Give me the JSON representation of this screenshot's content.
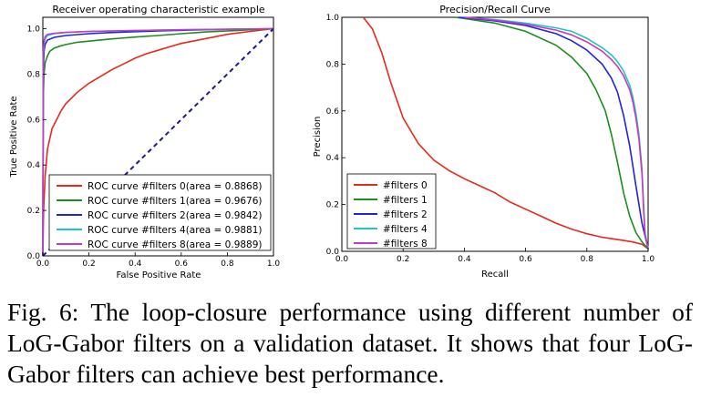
{
  "chart_data": [
    {
      "type": "line",
      "title": "Receiver operating characteristic example",
      "xlabel": "False Positive Rate",
      "ylabel": "True Positive Rate",
      "xlim": [
        0.0,
        1.0
      ],
      "ylim": [
        0.0,
        1.05
      ],
      "xticks": [
        "0.0",
        "0.2",
        "0.4",
        "0.6",
        "0.8",
        "1.0"
      ],
      "yticks": [
        "0.0",
        "0.2",
        "0.4",
        "0.6",
        "0.8",
        "1.0"
      ],
      "legend_position": "lower-right",
      "series": [
        {
          "name": "ROC curve #filters 0(area = 0.8868)",
          "color": "#e8281e",
          "x": [
            0,
            0.003,
            0.01,
            0.02,
            0.04,
            0.06,
            0.08,
            0.1,
            0.15,
            0.2,
            0.25,
            0.3,
            0.35,
            0.4,
            0.45,
            0.5,
            0.55,
            0.6,
            0.65,
            0.7,
            0.75,
            0.8,
            0.9,
            1.0
          ],
          "y": [
            0,
            0.2,
            0.35,
            0.47,
            0.56,
            0.6,
            0.64,
            0.67,
            0.72,
            0.76,
            0.79,
            0.82,
            0.845,
            0.87,
            0.89,
            0.905,
            0.92,
            0.935,
            0.945,
            0.955,
            0.965,
            0.975,
            0.988,
            1.0
          ]
        },
        {
          "name": "ROC curve #filters 1(area = 0.9676)",
          "color": "#1e8c1e",
          "x": [
            0,
            0.002,
            0.005,
            0.01,
            0.02,
            0.03,
            0.05,
            0.08,
            0.1,
            0.15,
            0.2,
            0.3,
            0.4,
            0.5,
            0.6,
            0.7,
            0.8,
            0.9,
            1.0
          ],
          "y": [
            0,
            0.7,
            0.8,
            0.85,
            0.88,
            0.9,
            0.915,
            0.925,
            0.93,
            0.94,
            0.945,
            0.955,
            0.963,
            0.97,
            0.978,
            0.985,
            0.99,
            0.995,
            1.0
          ]
        },
        {
          "name": "ROC curve #filters 2(area = 0.9842)",
          "color": "#2222dd",
          "x": [
            0,
            0.002,
            0.005,
            0.01,
            0.02,
            0.05,
            0.1,
            0.2,
            0.3,
            0.5,
            0.7,
            1.0
          ],
          "y": [
            0,
            0.8,
            0.9,
            0.93,
            0.95,
            0.962,
            0.97,
            0.978,
            0.983,
            0.99,
            0.995,
            1.0
          ]
        },
        {
          "name": "ROC curve #filters 4(area = 0.9881)",
          "color": "#22c4c4",
          "x": [
            0,
            0.002,
            0.005,
            0.01,
            0.02,
            0.05,
            0.1,
            0.2,
            0.4,
            0.6,
            1.0
          ],
          "y": [
            0,
            0.88,
            0.93,
            0.955,
            0.97,
            0.978,
            0.983,
            0.988,
            0.992,
            0.995,
            1.0
          ]
        },
        {
          "name": "ROC curve #filters 8(area = 0.9889)",
          "color": "#c43ac4",
          "x": [
            0,
            0.002,
            0.005,
            0.01,
            0.02,
            0.05,
            0.1,
            0.2,
            0.4,
            0.6,
            1.0
          ],
          "y": [
            0,
            0.9,
            0.945,
            0.965,
            0.975,
            0.98,
            0.984,
            0.988,
            0.992,
            0.995,
            1.0
          ]
        },
        {
          "name": "",
          "color": "#1a1a8c",
          "style": "dashed",
          "x": [
            0,
            1
          ],
          "y": [
            0,
            1
          ]
        }
      ]
    },
    {
      "type": "line",
      "title": "Precision/Recall Curve",
      "xlabel": "Recall",
      "ylabel": "Precision",
      "xlim": [
        0.0,
        1.0
      ],
      "ylim": [
        0.0,
        1.0
      ],
      "xticks": [
        "0.0",
        "0.2",
        "0.4",
        "0.6",
        "0.8",
        "1.0"
      ],
      "yticks": [
        "0.0",
        "0.2",
        "0.4",
        "0.6",
        "0.8",
        "1.0"
      ],
      "legend_position": "lower-left",
      "series": [
        {
          "name": "#filters 0",
          "color": "#e8281e",
          "x": [
            0.07,
            0.1,
            0.13,
            0.16,
            0.2,
            0.25,
            0.3,
            0.35,
            0.4,
            0.45,
            0.5,
            0.55,
            0.6,
            0.65,
            0.7,
            0.75,
            0.8,
            0.85,
            0.9,
            0.95,
            0.98,
            1.0
          ],
          "y": [
            1.0,
            0.95,
            0.85,
            0.72,
            0.57,
            0.46,
            0.39,
            0.345,
            0.31,
            0.28,
            0.25,
            0.21,
            0.18,
            0.15,
            0.12,
            0.095,
            0.075,
            0.06,
            0.05,
            0.04,
            0.03,
            0.01
          ]
        },
        {
          "name": "#filters 1",
          "color": "#1e8c1e",
          "x": [
            0.37,
            0.4,
            0.5,
            0.6,
            0.7,
            0.75,
            0.8,
            0.83,
            0.86,
            0.88,
            0.9,
            0.92,
            0.94,
            0.96,
            0.98,
            1.0
          ],
          "y": [
            1.0,
            0.995,
            0.975,
            0.94,
            0.88,
            0.83,
            0.76,
            0.69,
            0.6,
            0.5,
            0.38,
            0.25,
            0.15,
            0.08,
            0.04,
            0.01
          ]
        },
        {
          "name": "#filters 2",
          "color": "#2222dd",
          "x": [
            0.38,
            0.4,
            0.5,
            0.6,
            0.7,
            0.75,
            0.8,
            0.85,
            0.88,
            0.9,
            0.92,
            0.94,
            0.96,
            0.98,
            1.0
          ],
          "y": [
            1.0,
            0.998,
            0.985,
            0.965,
            0.93,
            0.9,
            0.86,
            0.8,
            0.74,
            0.68,
            0.58,
            0.45,
            0.28,
            0.12,
            0.01
          ]
        },
        {
          "name": "#filters 4",
          "color": "#22c4c4",
          "x": [
            0.4,
            0.5,
            0.6,
            0.7,
            0.75,
            0.8,
            0.85,
            0.88,
            0.9,
            0.92,
            0.94,
            0.95,
            0.96,
            0.97,
            0.98,
            0.985,
            0.99,
            1.0
          ],
          "y": [
            1.0,
            0.99,
            0.975,
            0.955,
            0.94,
            0.91,
            0.87,
            0.84,
            0.81,
            0.77,
            0.71,
            0.66,
            0.59,
            0.5,
            0.35,
            0.2,
            0.08,
            0.01
          ]
        },
        {
          "name": "#filters 8",
          "color": "#c43ac4",
          "x": [
            0.4,
            0.5,
            0.6,
            0.7,
            0.75,
            0.8,
            0.85,
            0.88,
            0.9,
            0.92,
            0.94,
            0.95,
            0.96,
            0.97,
            0.98,
            0.985,
            0.99,
            1.0
          ],
          "y": [
            1.0,
            0.988,
            0.97,
            0.945,
            0.925,
            0.895,
            0.855,
            0.82,
            0.79,
            0.75,
            0.69,
            0.64,
            0.57,
            0.48,
            0.33,
            0.18,
            0.07,
            0.01
          ]
        }
      ]
    }
  ],
  "caption": {
    "text": "Fig. 6: The loop-closure performance using different number of LoG-Gabor filters on a validation dataset. It shows that four LoG-Gabor filters can achieve best performance."
  }
}
